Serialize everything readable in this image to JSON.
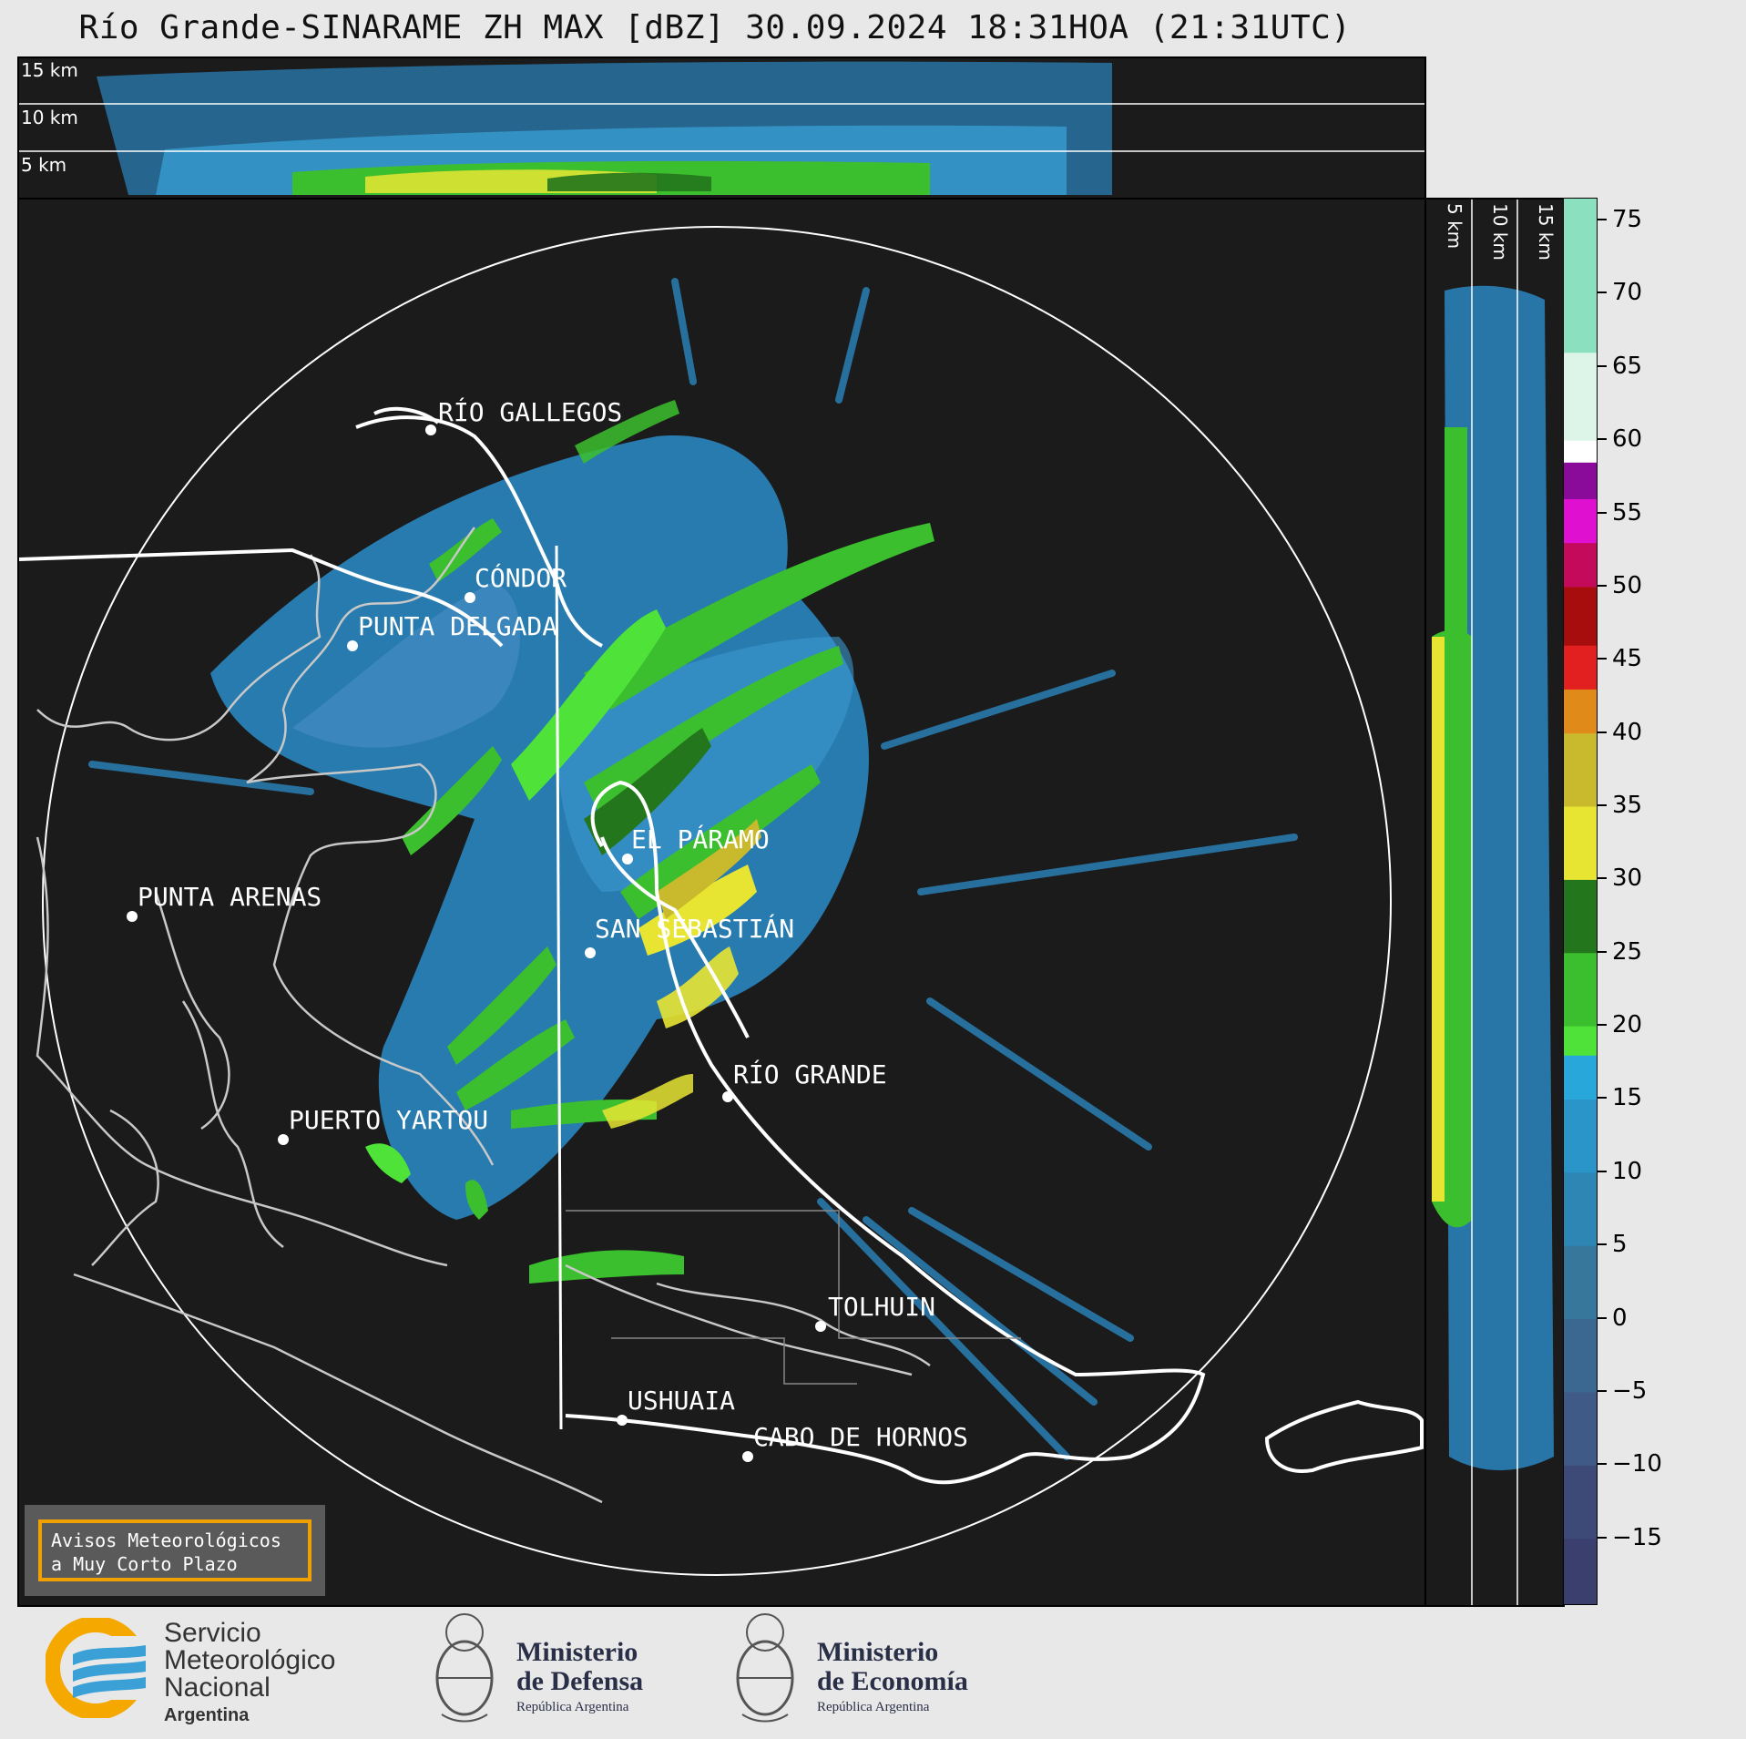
{
  "title": "Río Grande-SINARAME ZH MAX [dBZ] 30.09.2024 18:31HOA (21:31UTC)",
  "top_panel": {
    "altitude_labels": [
      "15 km",
      "10 km",
      "5 km"
    ]
  },
  "side_panel": {
    "altitude_labels": [
      "5 km",
      "10 km",
      "15 km"
    ]
  },
  "map": {
    "cities": [
      {
        "name": "RÍO GALLEGOS"
      },
      {
        "name": "CÓNDOR"
      },
      {
        "name": "PUNTA DELGADA"
      },
      {
        "name": "PUNTA ARENAS"
      },
      {
        "name": "EL PÁRAMO"
      },
      {
        "name": "SAN SEBASTIÁN"
      },
      {
        "name": "RÍO GRANDE"
      },
      {
        "name": "PUERTO YARTOU"
      },
      {
        "name": "TOLHUIN"
      },
      {
        "name": "USHUAIA"
      },
      {
        "name": "CABO DE HORNOS"
      }
    ]
  },
  "colorbar": {
    "unit": "dBZ",
    "ticks": [
      "75",
      "70",
      "65",
      "60",
      "55",
      "50",
      "45",
      "40",
      "35",
      "30",
      "25",
      "20",
      "15",
      "10",
      "5",
      "0",
      "−5",
      "−10",
      "−15"
    ],
    "tick_values": [
      75,
      70,
      65,
      60,
      55,
      50,
      45,
      40,
      35,
      30,
      25,
      20,
      15,
      10,
      5,
      0,
      -5,
      -10,
      -15
    ],
    "range": [
      -19.5,
      76.5
    ],
    "colors": [
      {
        "from": -19.5,
        "to": -15,
        "color": "#3a3f6e"
      },
      {
        "from": -15,
        "to": -10,
        "color": "#3d4a78"
      },
      {
        "from": -10,
        "to": -5,
        "color": "#3f5a86"
      },
      {
        "from": -5,
        "to": 0,
        "color": "#3b6890"
      },
      {
        "from": 0,
        "to": 5,
        "color": "#37779c"
      },
      {
        "from": 5,
        "to": 10,
        "color": "#2e86b5"
      },
      {
        "from": 10,
        "to": 15,
        "color": "#2a95c8"
      },
      {
        "from": 15,
        "to": 18,
        "color": "#28a8da"
      },
      {
        "from": 18,
        "to": 20,
        "color": "#4fe33a"
      },
      {
        "from": 20,
        "to": 25,
        "color": "#3cbf2e"
      },
      {
        "from": 25,
        "to": 30,
        "color": "#24761c"
      },
      {
        "from": 30,
        "to": 35,
        "color": "#e8e532"
      },
      {
        "from": 35,
        "to": 40,
        "color": "#c9b92c"
      },
      {
        "from": 40,
        "to": 43,
        "color": "#e08a1a"
      },
      {
        "from": 43,
        "to": 46,
        "color": "#e32020"
      },
      {
        "from": 46,
        "to": 50,
        "color": "#a80d0d"
      },
      {
        "from": 50,
        "to": 53,
        "color": "#c40a5a"
      },
      {
        "from": 53,
        "to": 56,
        "color": "#e010d0"
      },
      {
        "from": 56,
        "to": 58.5,
        "color": "#8a0a9a"
      },
      {
        "from": 58.5,
        "to": 60,
        "color": "#ffffff"
      },
      {
        "from": 60,
        "to": 66,
        "color": "#dcf5e8"
      },
      {
        "from": 66,
        "to": 76.5,
        "color": "#8be0bf"
      }
    ]
  },
  "alert_box": {
    "line1": "Avisos Meteorológicos",
    "line2": "a Muy Corto Plazo"
  },
  "logos": {
    "smn": {
      "line1": "Servicio",
      "line2": "Meteorológico",
      "line3": "Nacional",
      "line4": "Argentina"
    },
    "defensa": {
      "line1": "Ministerio",
      "line2": "de Defensa",
      "line3": "República Argentina"
    },
    "economia": {
      "line1": "Ministerio",
      "line2": "de Economía",
      "line3": "República Argentina"
    }
  }
}
